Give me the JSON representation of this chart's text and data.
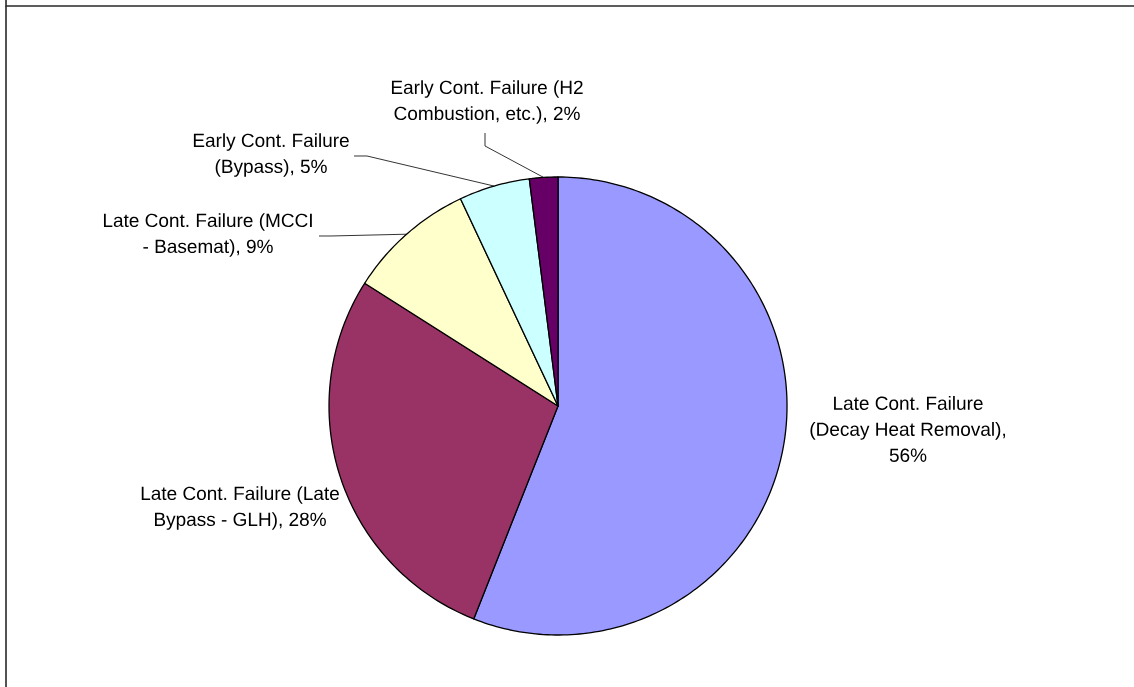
{
  "chart_data": {
    "type": "pie",
    "categories": [
      "Late Cont. Failure (Decay Heat Removal), 56%",
      "Late Cont. Failure (Late Bypass - GLH), 28%",
      "Late Cont. Failure (MCCI - Basemat), 9%",
      "Early Cont. Failure (Bypass), 5%",
      "Early Cont. Failure (H2 Combustion, etc.), 2%"
    ],
    "values": [
      56,
      28,
      9,
      5,
      2
    ],
    "colors": [
      "#9999ff",
      "#993366",
      "#ffffcc",
      "#ccffff",
      "#660066"
    ]
  }
}
